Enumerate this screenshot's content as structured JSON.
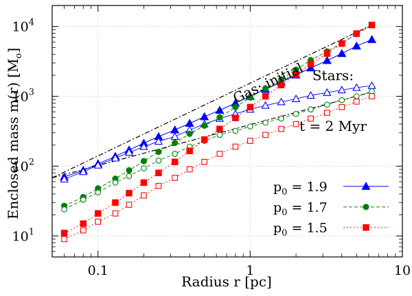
{
  "chart_data": {
    "type": "line",
    "x_scale": "log",
    "y_scale": "log",
    "xlim": [
      0.05,
      10
    ],
    "ylim": [
      5,
      20000
    ],
    "xlabel": "Radius r [pc]",
    "ylabel": "Enclosed mass m(r) [M",
    "ylabel_sub": "o",
    "ylabel_end": "]",
    "grid": true,
    "legend_position": "bottom-right",
    "x_ticks": [
      {
        "value": 0.1,
        "label": "0.1"
      },
      {
        "value": 1,
        "label": "1"
      },
      {
        "value": 10,
        "label": "10"
      }
    ],
    "y_ticks": [
      {
        "value": 10,
        "base": "10",
        "exp": "1"
      },
      {
        "value": 100,
        "base": "10",
        "exp": "2"
      },
      {
        "value": 1000,
        "base": "10",
        "exp": "3"
      },
      {
        "value": 10000,
        "base": "10",
        "exp": "4"
      }
    ],
    "x": [
      0.06,
      0.08,
      0.1,
      0.13,
      0.16,
      0.2,
      0.25,
      0.32,
      0.4,
      0.5,
      0.63,
      0.8,
      1.0,
      1.26,
      1.6,
      2.0,
      2.5,
      3.2,
      4.0,
      5.0,
      6.3
    ],
    "series": [
      {
        "name": "p0 = 1.9",
        "legend_base": "p",
        "legend_sub": "0",
        "legend_value": " = 1.9",
        "color": "#0000ff",
        "dash": "",
        "marker": "triangle",
        "gas_initial": [
          70,
          87,
          108,
          138,
          170,
          213,
          265,
          330,
          410,
          510,
          630,
          800,
          1000,
          1260,
          1600,
          2020,
          2550,
          3250,
          4100,
          5250,
          6500
        ],
        "stars_2myr": [
          65,
          83,
          103,
          130,
          157,
          190,
          226,
          265,
          330,
          400,
          480,
          560,
          650,
          740,
          830,
          920,
          1030,
          1130,
          1230,
          1330,
          1420
        ]
      },
      {
        "name": "p0 = 1.7",
        "legend_base": "p",
        "legend_sub": "0",
        "legend_value": " = 1.7",
        "color": "#007f00",
        "dash": "5,3",
        "marker": "circle",
        "gas_initial": [
          27,
          36,
          48,
          66,
          87,
          118,
          160,
          215,
          290,
          380,
          500,
          700,
          960,
          1300,
          1750,
          2400,
          3300,
          4400,
          5800,
          7800,
          10500
        ],
        "stars_2myr": [
          24,
          33,
          42,
          58,
          72,
          93,
          120,
          150,
          190,
          230,
          280,
          320,
          370,
          420,
          480,
          560,
          650,
          760,
          880,
          1000,
          1180
        ]
      },
      {
        "name": "p0 = 1.5",
        "legend_base": "p",
        "legend_sub": "0",
        "legend_value": " = 1.5",
        "color": "#ff0000",
        "dash": "2,3",
        "marker": "square",
        "gas_initial": [
          11,
          15,
          21,
          30,
          41,
          58,
          80,
          115,
          165,
          240,
          340,
          490,
          700,
          1000,
          1450,
          2050,
          2900,
          4100,
          5700,
          7900,
          10500
        ],
        "stars_2myr": [
          9,
          12,
          16,
          21,
          28,
          38,
          52,
          68,
          90,
          115,
          150,
          190,
          230,
          280,
          340,
          400,
          480,
          580,
          700,
          840,
          1000
        ]
      }
    ],
    "reference_lines": [
      {
        "name": "gas initial reference",
        "x": [
          0.05,
          6.3
        ],
        "y": [
          68,
          10500
        ]
      },
      {
        "name": "stars 2 Myr reference",
        "x": [
          0.05,
          6.3
        ],
        "y": [
          68,
          1150
        ]
      }
    ],
    "annotations": [
      {
        "text": "Gas: initial",
        "x": 1.35,
        "y": 1350,
        "rotate": -25
      },
      {
        "text": "Stars:",
        "x": 3.5,
        "y": 1700,
        "rotate": 0
      },
      {
        "text": "t = 2 Myr",
        "x": 3.5,
        "y": 320,
        "rotate": 0
      }
    ]
  }
}
